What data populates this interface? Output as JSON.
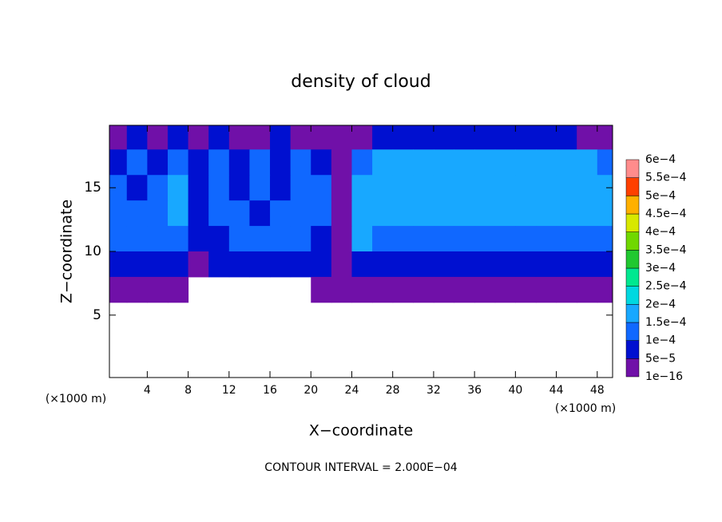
{
  "chart_data": {
    "type": "contour",
    "title": "density of cloud",
    "xlabel": "X−coordinate",
    "ylabel": "Z−coordinate",
    "x_unit": "(×1000 m)",
    "y_unit": "(×1000 m)",
    "note": "CONTOUR INTERVAL = 2.000E−04",
    "xlim": [
      0.3,
      49.5
    ],
    "ylim": [
      0.1,
      19.9
    ],
    "xticks": [
      4,
      8,
      12,
      16,
      20,
      24,
      28,
      32,
      36,
      40,
      44,
      48
    ],
    "yticks": [
      5,
      10,
      15
    ],
    "x": [
      1,
      3,
      5,
      7,
      9,
      11,
      13,
      15,
      17,
      19,
      21,
      23,
      25,
      27,
      29,
      31,
      33,
      35,
      37,
      39,
      41,
      43,
      45,
      47,
      49
    ],
    "y": [
      19,
      17,
      15,
      13,
      11,
      9,
      7,
      5,
      3,
      1
    ],
    "z": [
      [
        2e-05,
        7e-05,
        2e-05,
        7e-05,
        2e-05,
        7e-05,
        2e-05,
        2e-05,
        7e-05,
        2e-05,
        2e-05,
        2e-05,
        2e-05,
        7e-05,
        7e-05,
        7e-05,
        7e-05,
        7e-05,
        7e-05,
        7e-05,
        7e-05,
        7e-05,
        7e-05,
        2e-05,
        2e-05
      ],
      [
        7e-05,
        0.00012,
        7e-05,
        0.00012,
        7e-05,
        0.00012,
        7e-05,
        0.00012,
        7e-05,
        0.00012,
        7e-05,
        2e-05,
        0.00012,
        0.00016,
        0.00016,
        0.00016,
        0.00016,
        0.00016,
        0.00016,
        0.00016,
        0.00016,
        0.00016,
        0.00016,
        0.00016,
        0.00012
      ],
      [
        0.00012,
        7e-05,
        0.00012,
        0.00016,
        7e-05,
        0.00012,
        7e-05,
        0.00012,
        7e-05,
        0.00012,
        0.00012,
        2e-05,
        0.00016,
        0.00016,
        0.00016,
        0.00016,
        0.00016,
        0.00016,
        0.00016,
        0.00016,
        0.00016,
        0.00016,
        0.00016,
        0.00016,
        0.00016
      ],
      [
        0.00012,
        0.00012,
        0.00012,
        0.00016,
        7e-05,
        0.00012,
        0.00012,
        7e-05,
        0.00012,
        0.00012,
        0.00012,
        2e-05,
        0.00016,
        0.00016,
        0.00016,
        0.00016,
        0.00016,
        0.00016,
        0.00016,
        0.00016,
        0.00016,
        0.00016,
        0.00016,
        0.00016,
        0.00016
      ],
      [
        0.00012,
        0.00012,
        0.00012,
        0.00012,
        7e-05,
        7e-05,
        0.00012,
        0.00012,
        0.00012,
        0.00012,
        7e-05,
        2e-05,
        0.00016,
        0.00012,
        0.00012,
        0.00012,
        0.00012,
        0.00012,
        0.00012,
        0.00012,
        0.00012,
        0.00012,
        0.00012,
        0.00012,
        0.00012
      ],
      [
        7e-05,
        7e-05,
        7e-05,
        7e-05,
        2e-05,
        7e-05,
        7e-05,
        7e-05,
        7e-05,
        7e-05,
        7e-05,
        2e-05,
        7e-05,
        7e-05,
        7e-05,
        7e-05,
        7e-05,
        7e-05,
        7e-05,
        7e-05,
        7e-05,
        7e-05,
        7e-05,
        7e-05,
        7e-05
      ],
      [
        2e-05,
        2e-05,
        2e-05,
        2e-05,
        null,
        null,
        null,
        null,
        null,
        null,
        2e-05,
        2e-05,
        2e-05,
        2e-05,
        2e-05,
        2e-05,
        2e-05,
        2e-05,
        2e-05,
        2e-05,
        2e-05,
        2e-05,
        2e-05,
        2e-05,
        2e-05
      ],
      [
        null,
        null,
        null,
        null,
        null,
        null,
        null,
        null,
        null,
        null,
        null,
        null,
        null,
        null,
        null,
        null,
        null,
        null,
        null,
        null,
        null,
        null,
        null,
        null,
        null
      ],
      [
        null,
        null,
        null,
        null,
        null,
        null,
        null,
        null,
        null,
        null,
        null,
        null,
        null,
        null,
        null,
        null,
        null,
        null,
        null,
        null,
        null,
        null,
        null,
        null,
        null
      ],
      [
        null,
        null,
        null,
        null,
        null,
        null,
        null,
        null,
        null,
        null,
        null,
        null,
        null,
        null,
        null,
        null,
        null,
        null,
        null,
        null,
        null,
        null,
        null,
        null,
        null
      ]
    ],
    "levels": [
      {
        "value": 1e-16,
        "label": "1e−16"
      },
      {
        "value": 5e-05,
        "label": "5e−5"
      },
      {
        "value": 0.0001,
        "label": "1e−4"
      },
      {
        "value": 0.00015,
        "label": "1.5e−4"
      },
      {
        "value": 0.0002,
        "label": "2e−4"
      },
      {
        "value": 0.00025,
        "label": "2.5e−4"
      },
      {
        "value": 0.0003,
        "label": "3e−4"
      },
      {
        "value": 0.00035,
        "label": "3.5e−4"
      },
      {
        "value": 0.0004,
        "label": "4e−4"
      },
      {
        "value": 0.00045,
        "label": "4.5e−4"
      },
      {
        "value": 0.0005,
        "label": "5e−4"
      },
      {
        "value": 0.00055,
        "label": "5.5e−4"
      },
      {
        "value": 0.0006,
        "label": "6e−4"
      }
    ],
    "colors": [
      "#7010a8",
      "#0010d0",
      "#1068ff",
      "#18a8ff",
      "#00d8e0",
      "#00e890",
      "#20c830",
      "#70d800",
      "#d8e800",
      "#ffb000",
      "#ff4000",
      "#ff8c8c"
    ]
  }
}
